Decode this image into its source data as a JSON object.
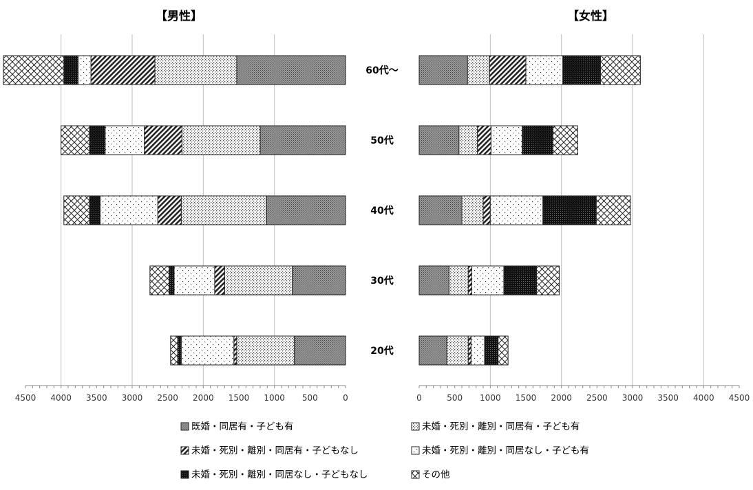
{
  "chart_data": {
    "type": "bar",
    "orientation": "horizontal-stacked-butterfly",
    "categories": [
      "60代～",
      "50代",
      "40代",
      "30代",
      "20代"
    ],
    "series": [
      {
        "name": "既婚・同居有・子ども有",
        "pattern": "dense-gray"
      },
      {
        "name": "未婚・死別・離別・同居有・子ども有",
        "pattern": "dots-medium"
      },
      {
        "name": "未婚・死別・離別・同居有・子どもなし",
        "pattern": "diagonal"
      },
      {
        "name": "未婚・死別・離別・同居なし・子ども有",
        "pattern": "dots-sparse"
      },
      {
        "name": "未婚・死別・離別・同居なし・子どもなし",
        "pattern": "black"
      },
      {
        "name": "その他",
        "pattern": "crosshatch"
      }
    ],
    "panels": [
      {
        "title": "【男性】",
        "direction": "left",
        "xlim": [
          0,
          4500
        ],
        "ticks": [
          "4500",
          "4000",
          "3500",
          "3000",
          "2500",
          "2000",
          "1500",
          "1000",
          "500",
          "0"
        ],
        "values": [
          [
            1530,
            1150,
            900,
            180,
            200,
            850
          ],
          [
            1200,
            1100,
            530,
            550,
            220,
            400
          ],
          [
            1110,
            1200,
            330,
            810,
            150,
            360
          ],
          [
            750,
            950,
            140,
            570,
            70,
            270
          ],
          [
            720,
            810,
            40,
            740,
            50,
            100
          ]
        ]
      },
      {
        "title": "【女性】",
        "direction": "right",
        "xlim": [
          0,
          4500
        ],
        "ticks": [
          "0",
          "500",
          "1000",
          "1500",
          "2000",
          "2500",
          "3000",
          "3500",
          "4000",
          "4500"
        ],
        "values": [
          [
            680,
            310,
            510,
            520,
            530,
            560
          ],
          [
            560,
            260,
            190,
            440,
            430,
            350
          ],
          [
            600,
            300,
            100,
            740,
            750,
            480
          ],
          [
            420,
            270,
            50,
            450,
            460,
            320
          ],
          [
            390,
            300,
            40,
            190,
            190,
            140
          ]
        ]
      }
    ],
    "grid": true,
    "legend": "bottom"
  }
}
